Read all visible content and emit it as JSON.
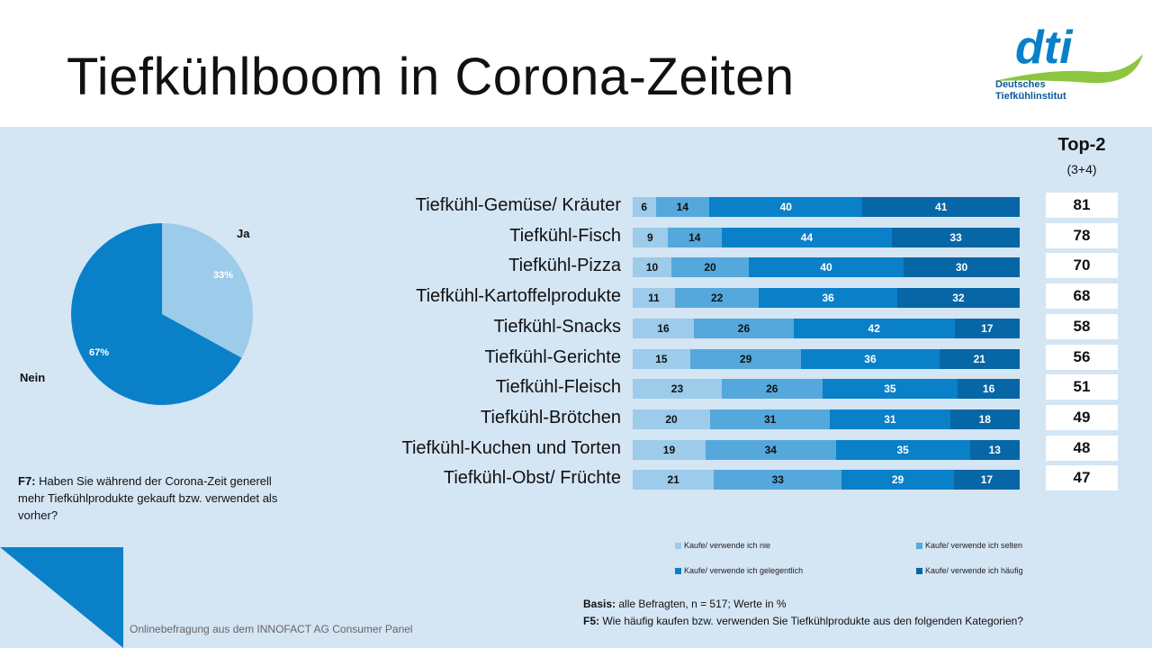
{
  "title": "Tiefkühlboom in Corona-Zeiten",
  "logo": {
    "brand": "dti",
    "line1": "Deutsches",
    "line2": "Tiefkühlinstitut"
  },
  "colors": {
    "nie": "#9dcbea",
    "selten": "#55a8dc",
    "gelegentlich": "#0a80c9",
    "haeufig": "#0766a6",
    "panel": "#d4e5f4"
  },
  "top2_header": {
    "title": "Top-2",
    "sub": "(3+4)"
  },
  "pie": {
    "ja_label": "Ja",
    "nein_label": "Nein",
    "ja_value": 33,
    "nein_value": 67,
    "ja_text": "33%",
    "nein_text": "67%"
  },
  "question_f7": {
    "label": "F7:",
    "text": " Haben Sie während der Corona-Zeit generell mehr Tiefkühlprodukte gekauft bzw. verwendet als vorher?"
  },
  "chart_data": {
    "type": "bar",
    "orientation": "horizontal",
    "stacked": true,
    "unit": "%",
    "categories": [
      "Tiefkühl-Gemüse/ Kräuter",
      "Tiefkühl-Fisch",
      "Tiefkühl-Pizza",
      "Tiefkühl-Kartoffelprodukte",
      "Tiefkühl-Snacks",
      "Tiefkühl-Gerichte",
      "Tiefkühl-Fleisch",
      "Tiefkühl-Brötchen",
      "Tiefkühl-Kuchen und Torten",
      "Tiefkühl-Obst/ Früchte"
    ],
    "series": [
      {
        "name": "Kaufe/ verwende ich nie",
        "values": [
          6,
          9,
          10,
          11,
          16,
          15,
          23,
          20,
          19,
          21
        ]
      },
      {
        "name": "Kaufe/ verwende ich selten",
        "values": [
          14,
          14,
          20,
          22,
          26,
          29,
          26,
          31,
          34,
          33
        ]
      },
      {
        "name": "Kaufe/ verwende ich gelegentlich",
        "values": [
          40,
          44,
          40,
          36,
          42,
          36,
          35,
          31,
          35,
          29
        ]
      },
      {
        "name": "Kaufe/ verwende ich häufig",
        "values": [
          41,
          33,
          30,
          32,
          17,
          21,
          16,
          18,
          13,
          17
        ]
      }
    ],
    "top2": [
      81,
      78,
      70,
      68,
      58,
      56,
      51,
      49,
      48,
      47
    ],
    "legend_position": "bottom"
  },
  "basis": {
    "label": "Basis:",
    "text": " alle Befragten, n = 517; Werte in %"
  },
  "question_f5": {
    "label": "F5:",
    "text": " Wie häufig kaufen bzw. verwenden Sie Tiefkühlprodukte aus den folgenden Kategorien?"
  },
  "footer": "Onlinebefragung aus dem INNOFACT AG Consumer Panel"
}
